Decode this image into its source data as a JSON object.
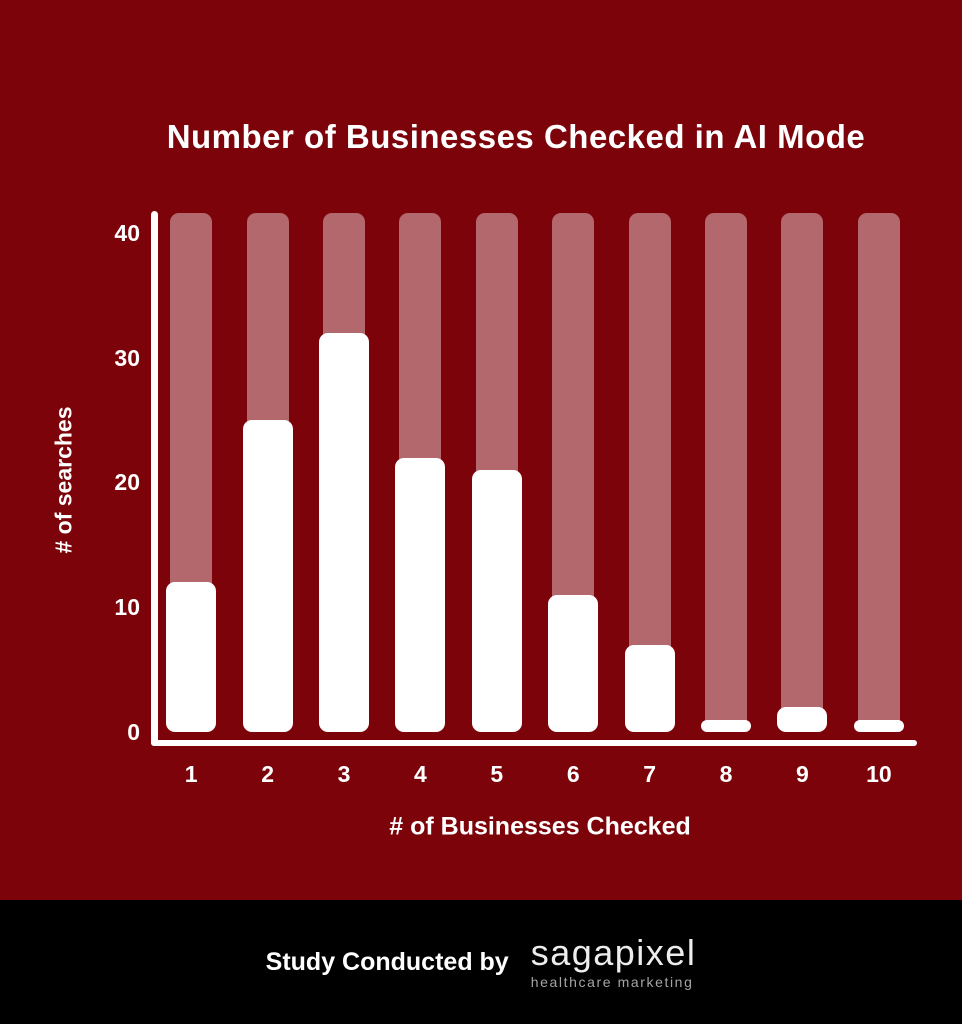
{
  "page": {
    "background_color": "#7c030a",
    "footer_background_color": "#000000",
    "text_color": "#ffffff"
  },
  "chart_data": {
    "type": "bar",
    "title": "Number of Businesses Checked in AI Mode",
    "xlabel": "# of Businesses Checked",
    "ylabel": "# of searches",
    "categories": [
      "1",
      "2",
      "3",
      "4",
      "5",
      "6",
      "7",
      "8",
      "9",
      "10"
    ],
    "values": [
      12,
      25,
      32,
      22,
      21,
      11,
      7,
      1,
      2,
      1
    ],
    "yticks": [
      0,
      10,
      20,
      30,
      40
    ],
    "ylim": [
      0,
      41.6
    ],
    "grid": false,
    "legend": false,
    "bar_color": "#ffffff",
    "track_color": "#b2686d",
    "track_full_height": true
  },
  "footer": {
    "credit_label": "Study Conducted by",
    "logo_text": "sagapixel",
    "logo_subtext": "healthcare marketing"
  }
}
